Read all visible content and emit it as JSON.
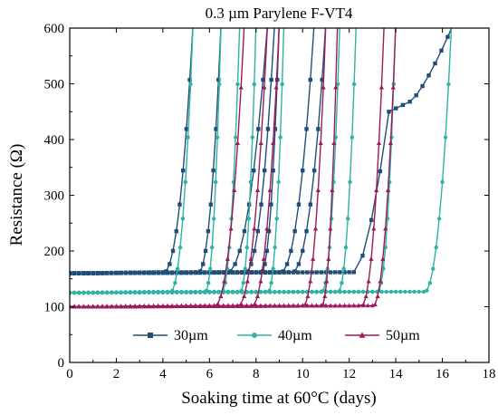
{
  "chart_data": {
    "type": "line",
    "title": "0.3 µm Parylene F-VT4",
    "xlabel": "Soaking time at 60°C (days)",
    "ylabel": "Resistance (Ω)",
    "xlim": [
      0,
      18
    ],
    "ylim": [
      0,
      600
    ],
    "xticks": [
      "0",
      "2",
      "4",
      "6",
      "8",
      "10",
      "12",
      "14",
      "16",
      "18"
    ],
    "yticks": [
      "0",
      "100",
      "200",
      "300",
      "400",
      "500",
      "600"
    ],
    "legend_placement": "bottom-center",
    "colors": {
      "30µm": "#1f4e79",
      "40µm": "#2fb3a3",
      "50µm": "#9b1b5a"
    },
    "series": [
      {
        "name": "30µm",
        "marker": "square",
        "color": "#1f4e79",
        "curves": [
          {
            "start": 160,
            "rise_x": 4.0,
            "end_x": 5.3
          },
          {
            "start": 160,
            "rise_x": 5.5,
            "end_x": 6.5
          },
          {
            "start": 160,
            "rise_x": 6.7,
            "end_x": 8.5
          },
          {
            "start": 160,
            "rise_x": 7.5,
            "end_x": 8.8
          },
          {
            "start": 160,
            "rise_x": 8.2,
            "end_x": 9.0
          },
          {
            "start": 160,
            "rise_x": 9.0,
            "end_x": 10.5
          },
          {
            "start": 160,
            "rise_x": 9.5,
            "end_x": 11.0
          },
          {
            "start": 160,
            "rise_x": 12.2,
            "end_x": 16.5,
            "plateau": 450
          }
        ]
      },
      {
        "name": "40µm",
        "marker": "circle",
        "color": "#2fb3a3",
        "curves": [
          {
            "start": 125,
            "rise_x": 4.3,
            "end_x": 5.3
          },
          {
            "start": 125,
            "rise_x": 5.8,
            "end_x": 6.5
          },
          {
            "start": 125,
            "rise_x": 6.5,
            "end_x": 7.3
          },
          {
            "start": 125,
            "rise_x": 7.3,
            "end_x": 8.0
          },
          {
            "start": 125,
            "rise_x": 8.5,
            "end_x": 9.2
          },
          {
            "start": 125,
            "rise_x": 10.8,
            "end_x": 11.6
          },
          {
            "start": 125,
            "rise_x": 11.5,
            "end_x": 12.3
          },
          {
            "start": 125,
            "rise_x": 13.2,
            "end_x": 14.0
          },
          {
            "start": 125,
            "rise_x": 15.2,
            "end_x": 16.4
          }
        ]
      },
      {
        "name": "50µm",
        "marker": "triangle",
        "color": "#9b1b5a",
        "curves": [
          {
            "start": 100,
            "rise_x": 6.2,
            "end_x": 7.5
          },
          {
            "start": 100,
            "rise_x": 7.2,
            "end_x": 8.5
          },
          {
            "start": 100,
            "rise_x": 7.8,
            "end_x": 9.0
          },
          {
            "start": 100,
            "rise_x": 10.0,
            "end_x": 11.0
          },
          {
            "start": 100,
            "rise_x": 10.8,
            "end_x": 11.5
          },
          {
            "start": 100,
            "rise_x": 12.5,
            "end_x": 13.5
          },
          {
            "start": 100,
            "rise_x": 13.0,
            "end_x": 14.0
          }
        ]
      }
    ]
  }
}
